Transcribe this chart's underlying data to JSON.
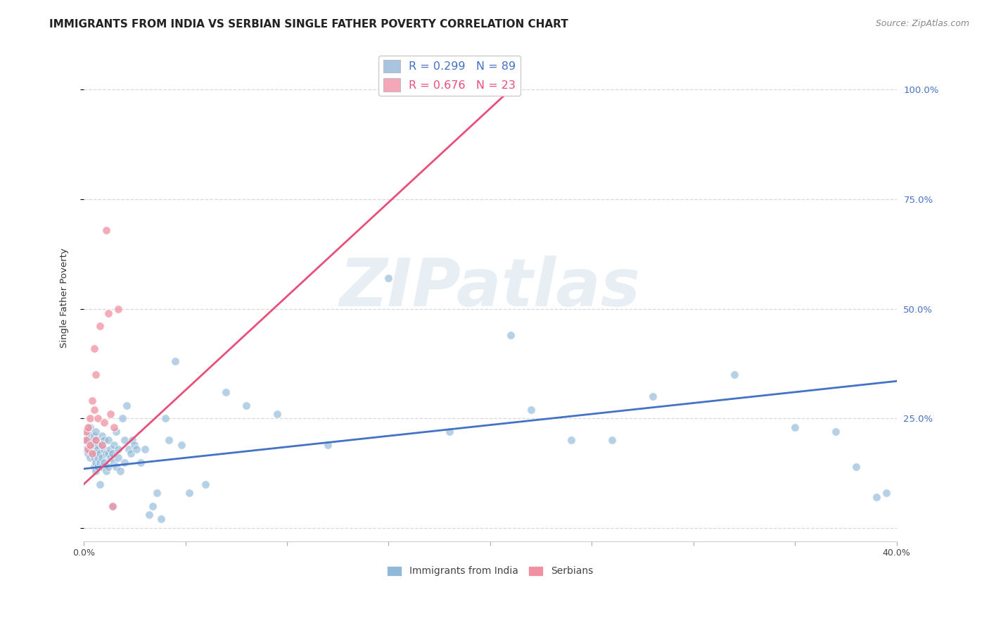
{
  "title": "IMMIGRANTS FROM INDIA VS SERBIAN SINGLE FATHER POVERTY CORRELATION CHART",
  "source": "Source: ZipAtlas.com",
  "ylabel": "Single Father Poverty",
  "ytick_labels": [
    "",
    "25.0%",
    "50.0%",
    "75.0%",
    "100.0%"
  ],
  "ytick_values": [
    0.0,
    0.25,
    0.5,
    0.75,
    1.0
  ],
  "xlim": [
    0.0,
    0.4
  ],
  "ylim": [
    -0.03,
    1.08
  ],
  "legend1_label": "R = 0.299   N = 89",
  "legend2_label": "R = 0.676   N = 23",
  "legend1_color": "#a8c4e0",
  "legend2_color": "#f4a7b9",
  "scatter_india_color": "#90b8d8",
  "scatter_serbia_color": "#f090a0",
  "line_india_color": "#4472c4",
  "line_serbia_color": "#e8507a",
  "watermark_text": "ZIPatlas",
  "india_x": [
    0.001,
    0.001,
    0.002,
    0.002,
    0.002,
    0.003,
    0.003,
    0.003,
    0.003,
    0.004,
    0.004,
    0.004,
    0.005,
    0.005,
    0.005,
    0.005,
    0.006,
    0.006,
    0.006,
    0.006,
    0.006,
    0.007,
    0.007,
    0.007,
    0.007,
    0.008,
    0.008,
    0.008,
    0.009,
    0.009,
    0.009,
    0.009,
    0.01,
    0.01,
    0.01,
    0.011,
    0.011,
    0.012,
    0.012,
    0.012,
    0.013,
    0.013,
    0.014,
    0.014,
    0.015,
    0.015,
    0.016,
    0.016,
    0.017,
    0.017,
    0.018,
    0.019,
    0.02,
    0.02,
    0.021,
    0.022,
    0.023,
    0.024,
    0.025,
    0.026,
    0.028,
    0.03,
    0.032,
    0.034,
    0.036,
    0.038,
    0.04,
    0.042,
    0.045,
    0.048,
    0.052,
    0.06,
    0.07,
    0.08,
    0.095,
    0.12,
    0.15,
    0.18,
    0.22,
    0.28,
    0.32,
    0.35,
    0.37,
    0.38,
    0.39,
    0.395,
    0.21,
    0.24,
    0.26
  ],
  "india_y": [
    0.18,
    0.2,
    0.17,
    0.2,
    0.22,
    0.19,
    0.16,
    0.21,
    0.23,
    0.18,
    0.17,
    0.2,
    0.14,
    0.19,
    0.16,
    0.21,
    0.13,
    0.17,
    0.2,
    0.15,
    0.22,
    0.16,
    0.19,
    0.14,
    0.18,
    0.15,
    0.17,
    0.1,
    0.16,
    0.19,
    0.14,
    0.21,
    0.18,
    0.15,
    0.2,
    0.17,
    0.13,
    0.17,
    0.2,
    0.14,
    0.18,
    0.16,
    0.05,
    0.17,
    0.19,
    0.15,
    0.22,
    0.14,
    0.18,
    0.16,
    0.13,
    0.25,
    0.2,
    0.15,
    0.28,
    0.18,
    0.17,
    0.2,
    0.19,
    0.18,
    0.15,
    0.18,
    0.03,
    0.05,
    0.08,
    0.02,
    0.25,
    0.2,
    0.38,
    0.19,
    0.08,
    0.1,
    0.31,
    0.28,
    0.26,
    0.19,
    0.57,
    0.22,
    0.27,
    0.3,
    0.35,
    0.23,
    0.22,
    0.14,
    0.07,
    0.08,
    0.44,
    0.2,
    0.2
  ],
  "serbia_x": [
    0.001,
    0.001,
    0.002,
    0.002,
    0.003,
    0.003,
    0.004,
    0.004,
    0.005,
    0.005,
    0.006,
    0.006,
    0.007,
    0.008,
    0.009,
    0.01,
    0.011,
    0.012,
    0.013,
    0.014,
    0.015,
    0.017,
    0.21
  ],
  "serbia_y": [
    0.2,
    0.22,
    0.18,
    0.23,
    0.19,
    0.25,
    0.17,
    0.29,
    0.27,
    0.41,
    0.35,
    0.2,
    0.25,
    0.46,
    0.19,
    0.24,
    0.68,
    0.49,
    0.26,
    0.05,
    0.23,
    0.5,
    1.0
  ],
  "india_line_x": [
    0.0,
    0.4
  ],
  "india_line_y": [
    0.135,
    0.335
  ],
  "serbia_line_x": [
    0.0,
    0.21
  ],
  "serbia_line_y": [
    0.1,
    1.0
  ],
  "background_color": "#ffffff",
  "grid_color": "#d8d8d8",
  "right_label_color": "#4472c4",
  "title_fontsize": 11,
  "label_fontsize": 9
}
